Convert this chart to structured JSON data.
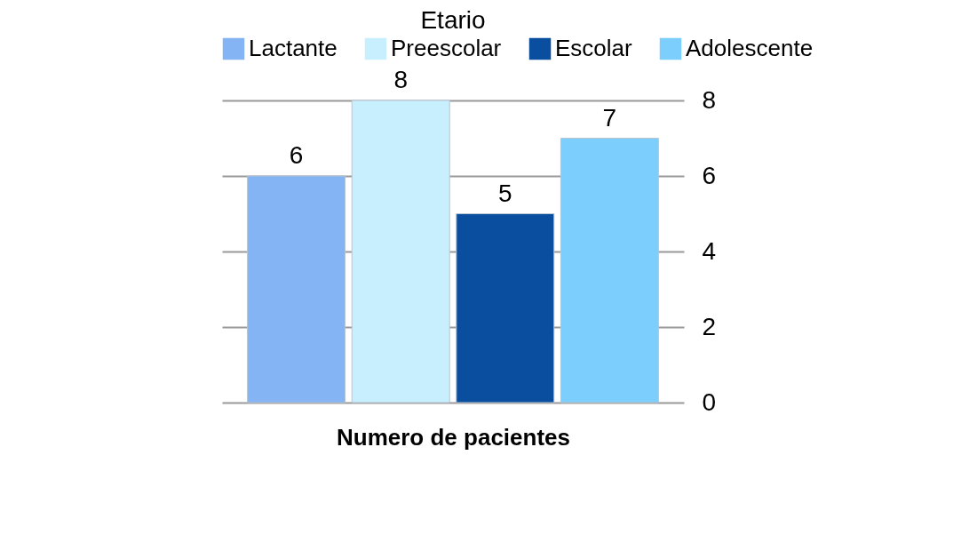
{
  "chart_data": {
    "type": "bar",
    "title": "Etario",
    "xlabel": "Numero de pacientes",
    "categories": [
      null
    ],
    "series": [
      {
        "name": "Lactante",
        "color": "#84b4f4",
        "values": [
          6
        ]
      },
      {
        "name": "Preescolar",
        "color": "#c8effe",
        "values": [
          8
        ]
      },
      {
        "name": "Escolar",
        "color": "#0a4ea0",
        "values": [
          5
        ]
      },
      {
        "name": "Adolescente",
        "color": "#7ccefc",
        "values": [
          7
        ]
      }
    ],
    "ylim": [
      0,
      8
    ],
    "yticks": [
      0,
      2,
      4,
      6,
      8
    ],
    "grid": "y",
    "legend": "top",
    "data_labels": true
  }
}
